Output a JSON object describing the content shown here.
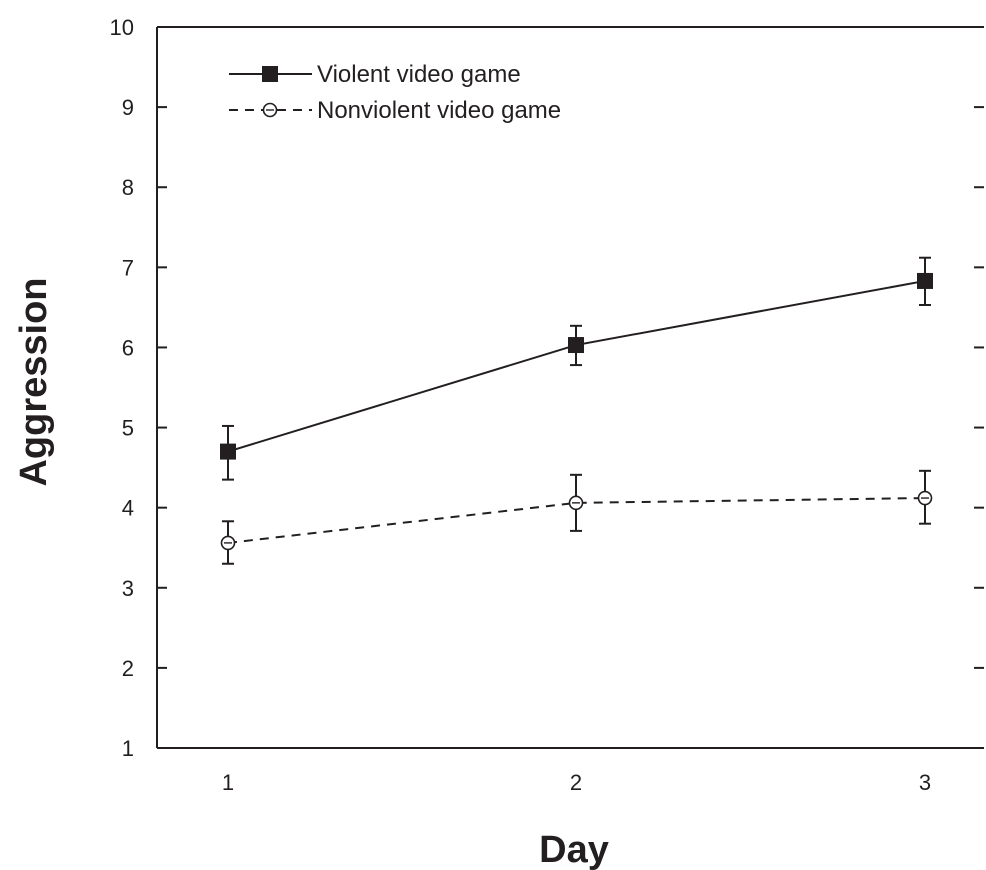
{
  "chart_data": {
    "type": "line",
    "title": "",
    "xlabel": "Day",
    "ylabel": "Aggression",
    "categories": [
      "1",
      "2",
      "3"
    ],
    "y_ticks": [
      "1",
      "2",
      "3",
      "4",
      "5",
      "6",
      "7",
      "8",
      "9",
      "10"
    ],
    "ylim": [
      1,
      10
    ],
    "grid": false,
    "legend_position": "top-left",
    "series": [
      {
        "name": "Violent video game",
        "values": [
          4.7,
          6.03,
          6.83
        ],
        "error_low": [
          4.35,
          5.78,
          6.53
        ],
        "error_high": [
          5.02,
          6.27,
          7.12
        ],
        "marker": "filled-square",
        "line_style": "solid",
        "color": "#231f20"
      },
      {
        "name": "Nonviolent video game",
        "values": [
          3.56,
          4.06,
          4.12
        ],
        "error_low": [
          3.3,
          3.71,
          3.8
        ],
        "error_high": [
          3.83,
          4.41,
          4.46
        ],
        "marker": "open-circle",
        "line_style": "dashed",
        "color": "#231f20"
      }
    ]
  }
}
